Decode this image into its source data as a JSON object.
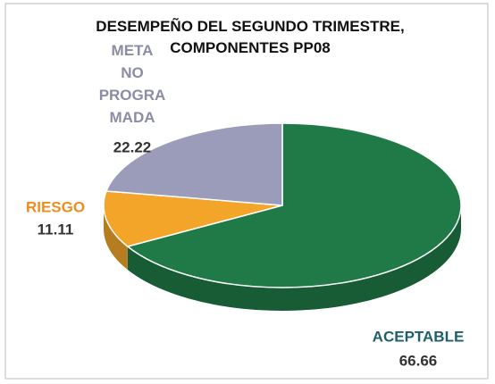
{
  "chart_data": {
    "type": "pie3d",
    "title": "DESEMPEÑO DEL SEGUNDO TRIMESTRE, COMPONENTES PP08",
    "categories": [
      "ACEPTABLE",
      "RIESGO",
      "META NO PROGRAMADA"
    ],
    "values": [
      66.66,
      11.11,
      22.22
    ],
    "colors": [
      "#1f7a47",
      "#f3a52a",
      "#9b9cba"
    ],
    "label_colors": [
      "#1f5f6b",
      "#f08c1e",
      "#8b8ca6"
    ]
  }
}
